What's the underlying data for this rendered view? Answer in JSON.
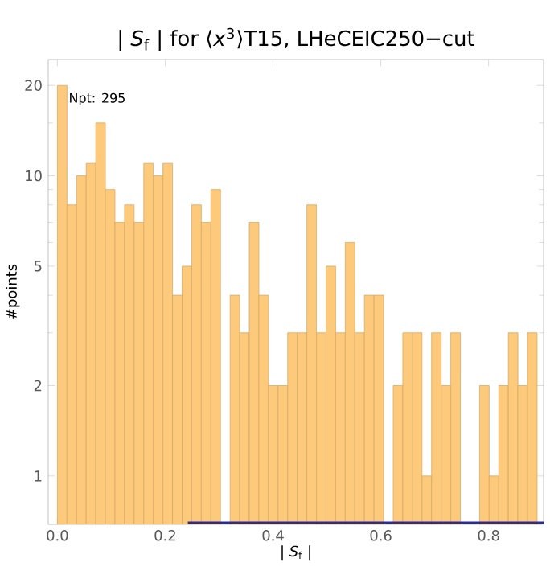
{
  "chart_data": {
    "type": "histogram",
    "title": "| *S*$_{f}$ | for ⟨*x*$^{3}$⟩T15, LHeCEIC250−cut",
    "xlabel": "| *S*$_{f}$ |",
    "ylabel": "#points",
    "annotations": [
      "Npt: 295"
    ],
    "bins": [
      0.0,
      0.0178,
      0.0356,
      0.0534,
      0.0712,
      0.089,
      0.1068,
      0.1246,
      0.1424,
      0.1602,
      0.178,
      0.1958,
      0.2136,
      0.2314,
      0.2492,
      0.267,
      0.2848,
      0.3026,
      0.3204,
      0.3382,
      0.356,
      0.3738,
      0.3916,
      0.4094,
      0.4272,
      0.445,
      0.4628,
      0.4806,
      0.4984,
      0.5162,
      0.534,
      0.5518,
      0.5696,
      0.5874,
      0.6052,
      0.623,
      0.6408,
      0.6586,
      0.6764,
      0.6942,
      0.712,
      0.7298,
      0.7476,
      0.7654,
      0.7832,
      0.801,
      0.8188,
      0.8366,
      0.8544,
      0.8722,
      0.89
    ],
    "values": [
      20,
      8,
      10,
      11,
      15,
      9,
      7,
      8,
      7,
      11,
      10,
      11,
      4,
      5,
      8,
      7,
      9,
      null,
      4,
      3,
      7,
      4,
      2,
      2,
      3,
      3,
      8,
      3,
      5,
      3,
      6,
      3,
      4,
      4,
      null,
      2,
      3,
      3,
      1,
      3,
      2,
      3,
      null,
      null,
      2,
      1,
      2,
      3,
      2,
      3
    ],
    "color": "#fdc97a",
    "series": [
      {
        "type": "line",
        "x": [
          0.242,
          0.902
        ],
        "values": [
          0.7,
          0.7
        ],
        "color": "#2a2aa0"
      }
    ],
    "log": "y",
    "xlim": [
      -0.017,
      0.902
    ],
    "ylim": [
      0.69,
      24.4
    ],
    "xticks": [
      {
        "value": 0,
        "label": "0.0"
      },
      {
        "value": 0.2,
        "label": "0.2"
      },
      {
        "value": 0.4,
        "label": "0.4"
      },
      {
        "value": 0.6,
        "label": "0.6"
      },
      {
        "value": 0.8,
        "label": "0.8"
      }
    ],
    "yticks": [
      1,
      2,
      5,
      10,
      20
    ],
    "grid": false
  }
}
